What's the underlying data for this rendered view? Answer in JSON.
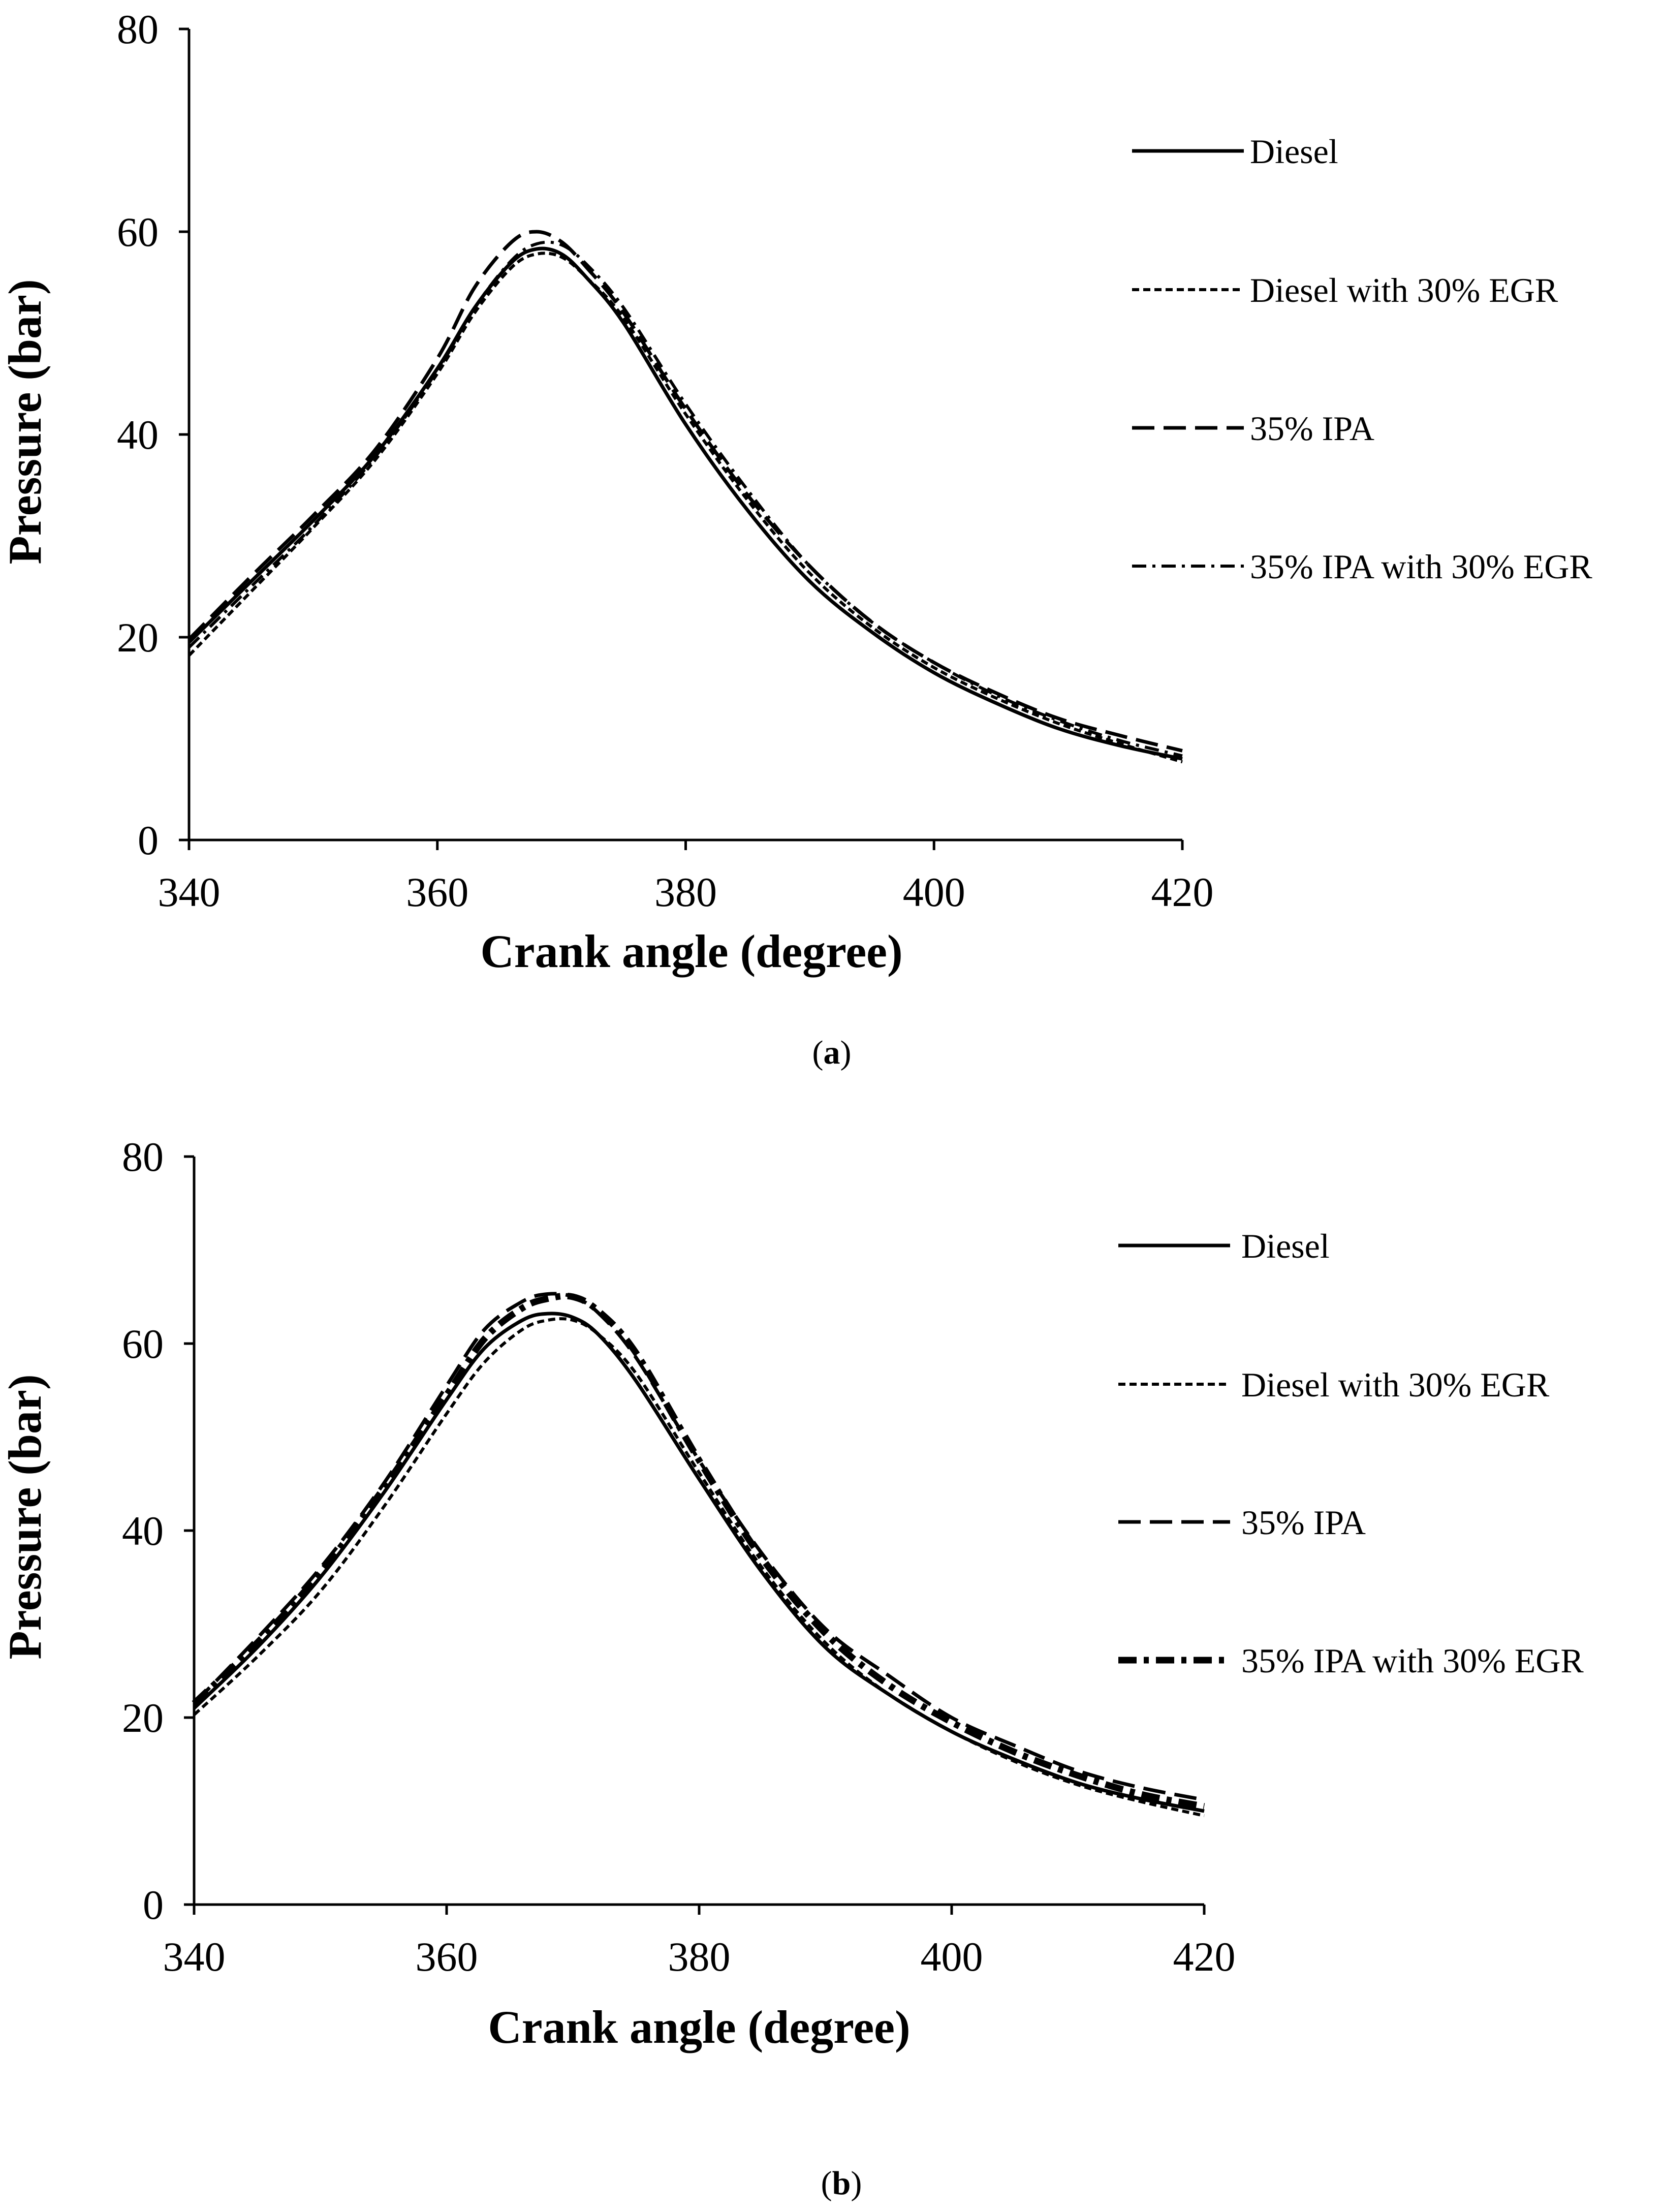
{
  "chart_data": [
    {
      "panel": "a",
      "caption_letter": "a",
      "type": "line",
      "xlabel": "Crank angle (degree)",
      "ylabel": "Pressure (bar)",
      "xlim": [
        340,
        420
      ],
      "ylim": [
        0,
        80
      ],
      "xticks": [
        340,
        360,
        380,
        400,
        420
      ],
      "yticks": [
        0,
        20,
        40,
        60,
        80
      ],
      "legend_placement": "right",
      "x": [
        340,
        345,
        350,
        355,
        360,
        363,
        366,
        368,
        370,
        372,
        375,
        380,
        385,
        390,
        395,
        400,
        405,
        410,
        415,
        420
      ],
      "series": [
        {
          "name": "Diesel",
          "style": "solid",
          "values": [
            19.5,
            25.5,
            31.5,
            38.0,
            46.5,
            52.5,
            57.0,
            58.3,
            57.8,
            55.5,
            51.0,
            41.0,
            32.5,
            25.5,
            20.5,
            16.5,
            13.5,
            11.0,
            9.3,
            8.0
          ]
        },
        {
          "name": "Diesel with 30% EGR",
          "style": "dotted",
          "values": [
            18.2,
            24.5,
            30.8,
            37.5,
            46.0,
            52.0,
            56.5,
            57.8,
            57.5,
            55.5,
            51.5,
            42.0,
            33.5,
            26.3,
            21.0,
            17.0,
            14.0,
            11.5,
            9.5,
            7.7
          ]
        },
        {
          "name": "35% IPA",
          "style": "dashed",
          "values": [
            19.8,
            26.0,
            32.0,
            38.5,
            47.5,
            54.5,
            59.0,
            60.0,
            59.0,
            56.5,
            52.0,
            42.5,
            34.0,
            27.0,
            21.5,
            17.5,
            14.5,
            12.0,
            10.3,
            8.8
          ]
        },
        {
          "name": "35% IPA with 30% EGR",
          "style": "dashdot",
          "values": [
            19.0,
            25.0,
            31.0,
            37.8,
            46.3,
            52.5,
            57.2,
            58.8,
            58.7,
            56.8,
            52.5,
            43.0,
            34.5,
            27.0,
            21.5,
            17.5,
            14.3,
            11.8,
            9.8,
            8.3
          ]
        }
      ]
    },
    {
      "panel": "b",
      "caption_letter": "b",
      "type": "line",
      "xlabel": "Crank angle (degree)",
      "ylabel": "Pressure (bar)",
      "xlim": [
        340,
        420
      ],
      "ylim": [
        0,
        80
      ],
      "xticks": [
        340,
        360,
        380,
        400,
        420
      ],
      "yticks": [
        0,
        20,
        40,
        60,
        80
      ],
      "legend_placement": "right",
      "x": [
        340,
        345,
        350,
        355,
        360,
        363,
        366,
        368,
        370,
        372,
        375,
        380,
        385,
        390,
        395,
        400,
        405,
        410,
        415,
        420
      ],
      "series": [
        {
          "name": "Diesel",
          "style": "solid",
          "values": [
            21.0,
            27.5,
            35.0,
            44.0,
            54.0,
            59.5,
            62.5,
            63.2,
            62.8,
            61.0,
            56.0,
            45.5,
            35.5,
            27.5,
            22.5,
            18.5,
            15.5,
            13.0,
            11.3,
            10.0
          ]
        },
        {
          "name": "Diesel with 30% EGR",
          "style": "dotted",
          "values": [
            20.3,
            26.5,
            33.5,
            42.5,
            52.5,
            58.0,
            61.5,
            62.5,
            62.5,
            61.0,
            56.8,
            46.2,
            36.0,
            28.0,
            22.5,
            18.5,
            15.3,
            12.8,
            11.0,
            9.5
          ]
        },
        {
          "name": "35% IPA",
          "style": "dashed",
          "values": [
            21.5,
            28.5,
            36.0,
            45.0,
            55.5,
            61.5,
            64.5,
            65.3,
            65.0,
            63.3,
            58.5,
            47.5,
            37.5,
            29.5,
            24.5,
            20.0,
            17.0,
            14.3,
            12.5,
            11.2
          ]
        },
        {
          "name": "35% IPA with 30% EGR",
          "style": "dashdot-bold",
          "values": [
            21.5,
            28.0,
            35.5,
            44.5,
            54.5,
            60.5,
            63.8,
            64.8,
            65.0,
            63.5,
            59.0,
            47.5,
            37.0,
            29.0,
            23.5,
            19.5,
            16.3,
            13.8,
            11.8,
            10.5
          ]
        }
      ]
    }
  ]
}
